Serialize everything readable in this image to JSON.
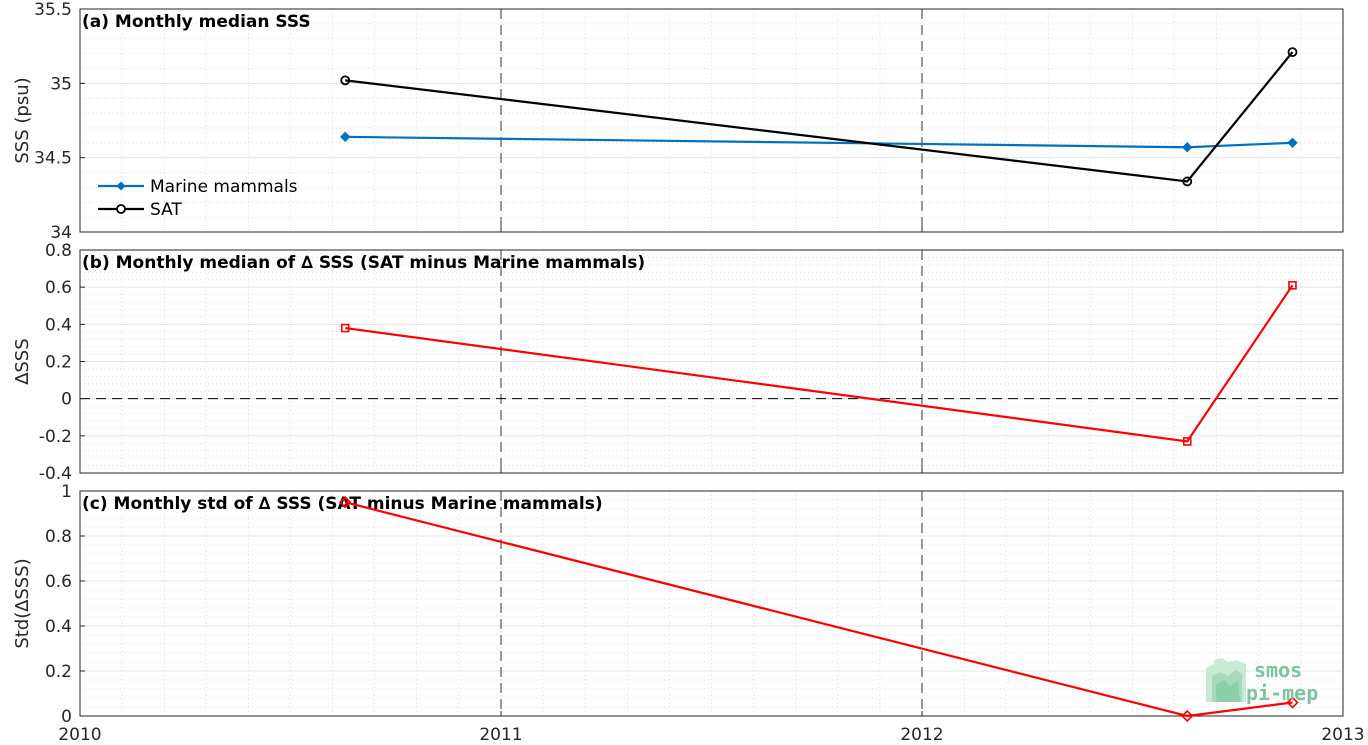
{
  "chart_data": [
    {
      "type": "line",
      "title": "(a) Monthly median SSS",
      "ylabel": "SSS (psu)",
      "xlim": [
        2010,
        2013
      ],
      "ylim": [
        34,
        35.5
      ],
      "yticks": [
        34,
        34.5,
        35,
        35.5
      ],
      "ytick_labels": [
        "34",
        "34.5",
        "35",
        "35.5"
      ],
      "xtick_labels": [],
      "grid": true,
      "legend_position": "lower-left",
      "series": [
        {
          "name": "Marine mammals",
          "color": "#0072bd",
          "marker": "filled-diamond",
          "x": [
            2010.63,
            2012.63,
            2012.88
          ],
          "y": [
            34.64,
            34.57,
            34.6
          ]
        },
        {
          "name": "SAT",
          "color": "#000000",
          "marker": "open-circle",
          "x": [
            2010.63,
            2012.63,
            2012.88
          ],
          "y": [
            35.02,
            34.34,
            35.21
          ]
        }
      ]
    },
    {
      "type": "line",
      "title": "(b) Monthly median of ∆ SSS (SAT minus Marine mammals)",
      "ylabel": "∆SSS",
      "xlim": [
        2010,
        2013
      ],
      "ylim": [
        -0.4,
        0.8
      ],
      "yticks": [
        -0.4,
        -0.2,
        0,
        0.2,
        0.4,
        0.6,
        0.8
      ],
      "ytick_labels": [
        "-0.4",
        "-0.2",
        "0",
        "0.2",
        "0.4",
        "0.6",
        "0.8"
      ],
      "xtick_labels": [],
      "zero_line": true,
      "grid": true,
      "series": [
        {
          "color": "#ff0000",
          "marker": "open-square",
          "x": [
            2010.63,
            2012.63,
            2012.88
          ],
          "y": [
            0.38,
            -0.23,
            0.61
          ]
        }
      ]
    },
    {
      "type": "line",
      "title": "(c) Monthly std of ∆ SSS (SAT minus Marine mammals)",
      "ylabel": "Std(∆SSS)",
      "xlim": [
        2010,
        2013
      ],
      "ylim": [
        0,
        1
      ],
      "yticks": [
        0,
        0.2,
        0.4,
        0.6,
        0.8,
        1
      ],
      "ytick_labels": [
        "0",
        "0.2",
        "0.4",
        "0.6",
        "0.8",
        "1"
      ],
      "xtick_labels": [
        "2010",
        "2011",
        "2012",
        "2013"
      ],
      "grid": true,
      "series": [
        {
          "color": "#ff0000",
          "marker": "open-diamond",
          "x": [
            2010.63,
            2012.63,
            2012.88
          ],
          "y": [
            0.95,
            0.0,
            0.06
          ]
        }
      ]
    }
  ],
  "logo": {
    "line1": "smos",
    "line2": "pi-mep",
    "color": "#7cc3a0"
  }
}
